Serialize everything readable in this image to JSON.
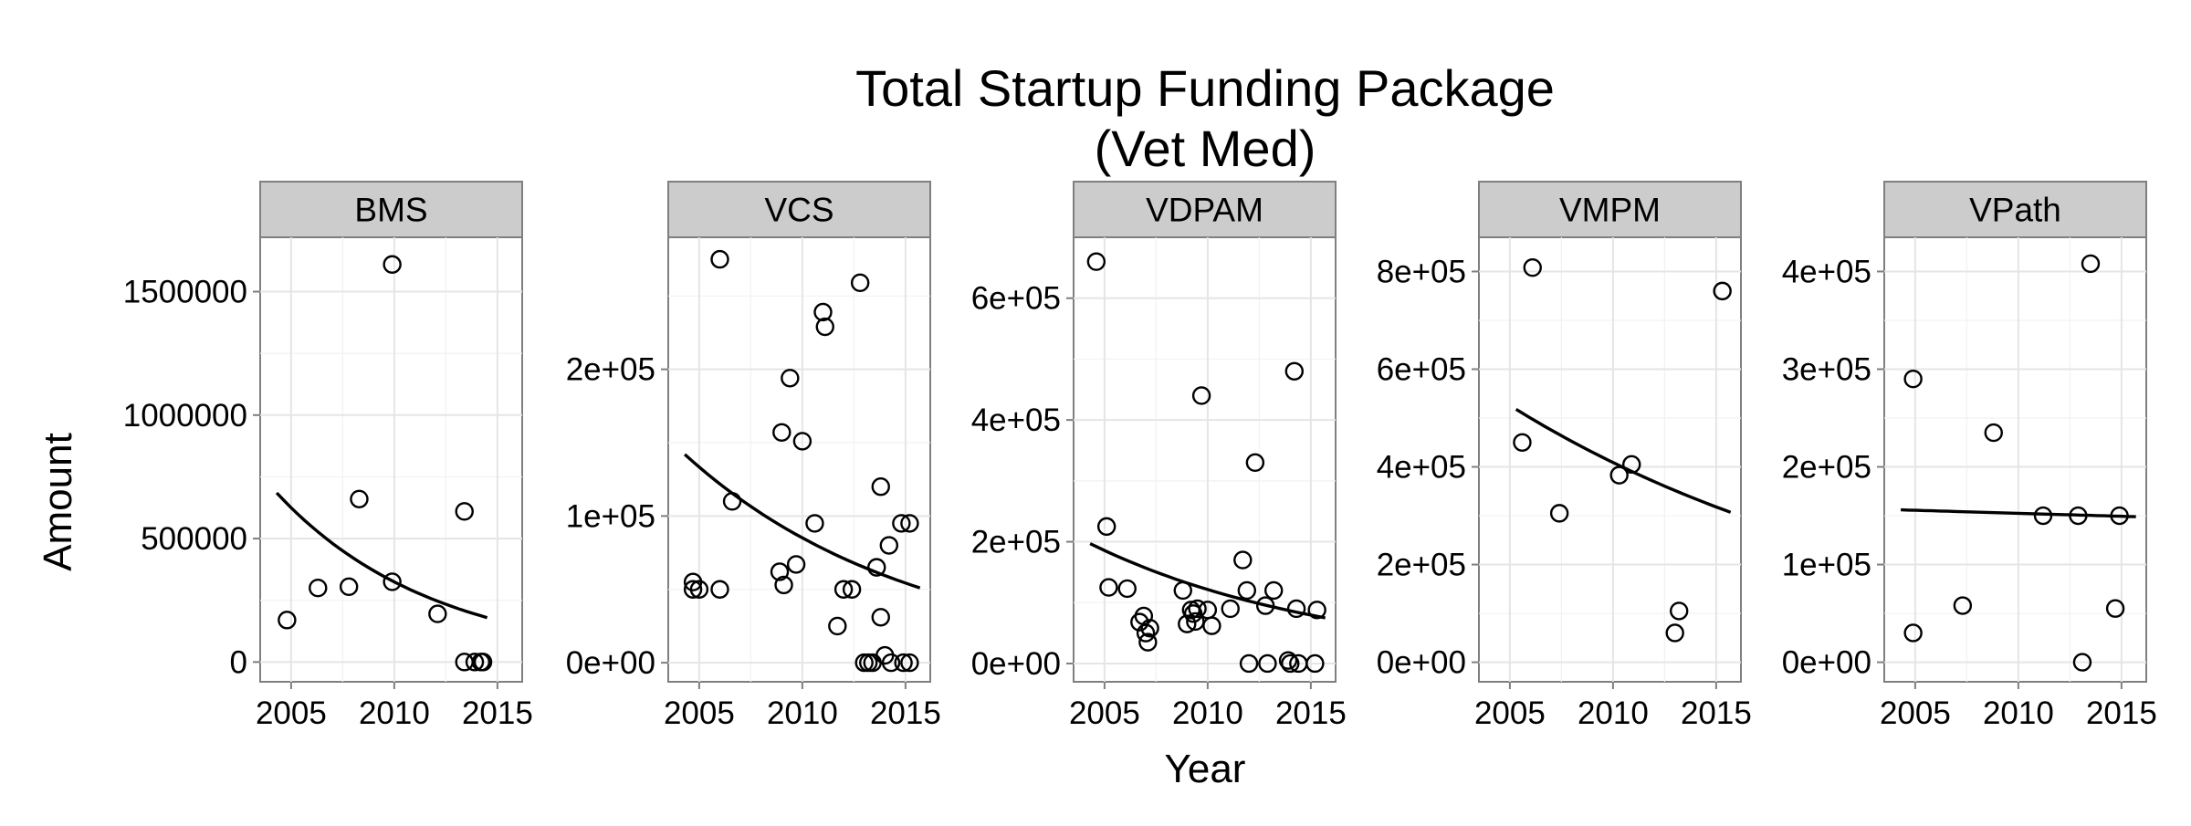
{
  "chart_data": {
    "type": "scatter",
    "title": [
      "Total Startup Funding Package",
      "(Vet Med)"
    ],
    "xlabel": "Year",
    "ylabel": "Amount",
    "grid": true,
    "xlim": [
      2003.5,
      2016.2
    ],
    "x_ticks": [
      2005,
      2010,
      2015
    ],
    "x_tick_labels": [
      "2005",
      "2010",
      "2015"
    ],
    "panels": [
      {
        "name": "BMS",
        "ylim": [
          -80000,
          1720000
        ],
        "y_ticks": [
          0,
          500000,
          1000000,
          1500000
        ],
        "y_tick_labels": [
          "0",
          "500000",
          "1000000",
          "1500000"
        ],
        "points": [
          {
            "x": 2004.8,
            "y": 170000
          },
          {
            "x": 2006.3,
            "y": 300000
          },
          {
            "x": 2007.8,
            "y": 305000
          },
          {
            "x": 2008.3,
            "y": 660000
          },
          {
            "x": 2009.9,
            "y": 1610000
          },
          {
            "x": 2009.9,
            "y": 325000
          },
          {
            "x": 2012.1,
            "y": 195000
          },
          {
            "x": 2013.4,
            "y": 610000
          },
          {
            "x": 2013.4,
            "y": 0
          },
          {
            "x": 2013.9,
            "y": 0
          },
          {
            "x": 2014.2,
            "y": 0
          },
          {
            "x": 2014.3,
            "y": 0
          }
        ],
        "trend": {
          "x0": 2004.3,
          "x1": 2014.5,
          "y0": 685000,
          "y1": 180000
        }
      },
      {
        "name": "VCS",
        "ylim": [
          -13000,
          290000
        ],
        "y_ticks": [
          0,
          100000,
          200000
        ],
        "y_tick_labels": [
          "0e+00",
          "1e+05",
          "2e+05"
        ],
        "points": [
          {
            "x": 2004.7,
            "y": 55000
          },
          {
            "x": 2004.7,
            "y": 50000
          },
          {
            "x": 2005.0,
            "y": 50000
          },
          {
            "x": 2006.0,
            "y": 50000
          },
          {
            "x": 2006.0,
            "y": 275000
          },
          {
            "x": 2006.6,
            "y": 110000
          },
          {
            "x": 2008.9,
            "y": 62000
          },
          {
            "x": 2009.0,
            "y": 157000
          },
          {
            "x": 2009.1,
            "y": 53000
          },
          {
            "x": 2009.4,
            "y": 194000
          },
          {
            "x": 2009.7,
            "y": 67000
          },
          {
            "x": 2010.0,
            "y": 151000
          },
          {
            "x": 2010.6,
            "y": 95000
          },
          {
            "x": 2011.0,
            "y": 239000
          },
          {
            "x": 2011.1,
            "y": 229000
          },
          {
            "x": 2011.7,
            "y": 25000
          },
          {
            "x": 2012.0,
            "y": 50000
          },
          {
            "x": 2012.4,
            "y": 50000
          },
          {
            "x": 2012.8,
            "y": 259000
          },
          {
            "x": 2013.0,
            "y": 0
          },
          {
            "x": 2013.2,
            "y": 0
          },
          {
            "x": 2013.4,
            "y": 0
          },
          {
            "x": 2013.6,
            "y": 65000
          },
          {
            "x": 2013.8,
            "y": 31000
          },
          {
            "x": 2013.8,
            "y": 120000
          },
          {
            "x": 2014.0,
            "y": 5000
          },
          {
            "x": 2014.2,
            "y": 80000
          },
          {
            "x": 2014.3,
            "y": 0
          },
          {
            "x": 2014.8,
            "y": 95000
          },
          {
            "x": 2014.9,
            "y": 0
          },
          {
            "x": 2015.2,
            "y": 95000
          },
          {
            "x": 2015.2,
            "y": 0
          }
        ],
        "trend": {
          "x0": 2004.3,
          "x1": 2015.7,
          "y0": 142000,
          "y1": 51000
        }
      },
      {
        "name": "VDPAM",
        "ylim": [
          -30000,
          700000
        ],
        "y_ticks": [
          0,
          200000,
          400000,
          600000
        ],
        "y_tick_labels": [
          "0e+00",
          "2e+05",
          "4e+05",
          "6e+05"
        ],
        "points": [
          {
            "x": 2004.6,
            "y": 660000
          },
          {
            "x": 2005.1,
            "y": 225000
          },
          {
            "x": 2005.2,
            "y": 125000
          },
          {
            "x": 2006.1,
            "y": 123000
          },
          {
            "x": 2006.7,
            "y": 68000
          },
          {
            "x": 2006.9,
            "y": 78000
          },
          {
            "x": 2007.0,
            "y": 50000
          },
          {
            "x": 2007.1,
            "y": 35000
          },
          {
            "x": 2007.2,
            "y": 58000
          },
          {
            "x": 2008.8,
            "y": 120000
          },
          {
            "x": 2009.0,
            "y": 65000
          },
          {
            "x": 2009.2,
            "y": 88000
          },
          {
            "x": 2009.3,
            "y": 82000
          },
          {
            "x": 2009.4,
            "y": 69000
          },
          {
            "x": 2009.5,
            "y": 90000
          },
          {
            "x": 2009.7,
            "y": 440000
          },
          {
            "x": 2010.0,
            "y": 88000
          },
          {
            "x": 2010.2,
            "y": 62000
          },
          {
            "x": 2011.1,
            "y": 90000
          },
          {
            "x": 2011.7,
            "y": 170000
          },
          {
            "x": 2011.9,
            "y": 120000
          },
          {
            "x": 2012.0,
            "y": 0
          },
          {
            "x": 2012.3,
            "y": 330000
          },
          {
            "x": 2012.8,
            "y": 95000
          },
          {
            "x": 2012.9,
            "y": 0
          },
          {
            "x": 2013.2,
            "y": 120000
          },
          {
            "x": 2013.9,
            "y": 5000
          },
          {
            "x": 2014.0,
            "y": 0
          },
          {
            "x": 2014.2,
            "y": 480000
          },
          {
            "x": 2014.3,
            "y": 90000
          },
          {
            "x": 2014.4,
            "y": 0
          },
          {
            "x": 2015.2,
            "y": 0
          },
          {
            "x": 2015.3,
            "y": 88000
          }
        ],
        "trend": {
          "x0": 2004.3,
          "x1": 2015.7,
          "y0": 197000,
          "y1": 75000
        }
      },
      {
        "name": "VMPM",
        "ylim": [
          -40000,
          870000
        ],
        "y_ticks": [
          0,
          200000,
          400000,
          600000,
          800000
        ],
        "y_tick_labels": [
          "0e+00",
          "2e+05",
          "4e+05",
          "6e+05",
          "8e+05"
        ],
        "points": [
          {
            "x": 2005.6,
            "y": 450000
          },
          {
            "x": 2006.1,
            "y": 808000
          },
          {
            "x": 2007.4,
            "y": 305000
          },
          {
            "x": 2010.3,
            "y": 383000
          },
          {
            "x": 2010.9,
            "y": 405000
          },
          {
            "x": 2013.0,
            "y": 60000
          },
          {
            "x": 2013.2,
            "y": 105000
          },
          {
            "x": 2015.3,
            "y": 760000
          }
        ],
        "trend": {
          "x0": 2005.3,
          "x1": 2015.7,
          "y0": 518000,
          "y1": 307000
        }
      },
      {
        "name": "VPath",
        "ylim": [
          -20000,
          435000
        ],
        "y_ticks": [
          0,
          100000,
          200000,
          300000,
          400000
        ],
        "y_tick_labels": [
          "0e+00",
          "1e+05",
          "2e+05",
          "3e+05",
          "4e+05"
        ],
        "points": [
          {
            "x": 2004.9,
            "y": 290000
          },
          {
            "x": 2004.9,
            "y": 30000
          },
          {
            "x": 2007.3,
            "y": 58000
          },
          {
            "x": 2008.8,
            "y": 235000
          },
          {
            "x": 2011.2,
            "y": 150000
          },
          {
            "x": 2012.9,
            "y": 150000
          },
          {
            "x": 2013.1,
            "y": 0
          },
          {
            "x": 2013.5,
            "y": 408000
          },
          {
            "x": 2014.7,
            "y": 55000
          },
          {
            "x": 2014.9,
            "y": 150000
          }
        ],
        "trend": {
          "x0": 2004.3,
          "x1": 2015.7,
          "y0": 156000,
          "y1": 149000
        }
      }
    ]
  }
}
